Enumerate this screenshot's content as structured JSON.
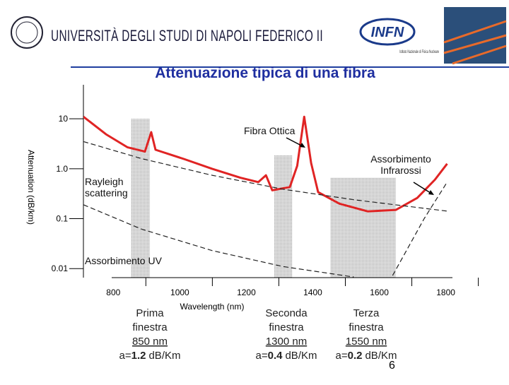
{
  "header": {
    "university": "UNIVERSITÀ DEGLI STUDI DI NAPOLI FEDERICO II",
    "institute": "INFN",
    "institute_full": "Istituto Nazionale di Fisica Nucleare"
  },
  "page_number": "6",
  "chart_data": {
    "type": "line",
    "title": "Attenuazione tipica di una fibra",
    "x_label": "Wavelength (nm)",
    "y_label": "Attenuation (dB/km)",
    "xlim": [
      710,
      1820
    ],
    "xticks": [
      800,
      1000,
      1200,
      1400,
      1600,
      1800
    ],
    "ylim": [
      0.0066,
      48
    ],
    "log_y": true,
    "yticks": [
      10,
      {
        "value": 1,
        "label": "1.0"
      },
      0.1,
      0.01
    ],
    "series": [
      {
        "color": "#e02424",
        "dash": false,
        "x": [
          710,
          778,
          842,
          895,
          914,
          927,
          1012,
          1097,
          1182,
          1236,
          1259,
          1278,
          1331,
          1353,
          1374,
          1395,
          1416,
          1480,
          1565,
          1650,
          1714,
          1767,
          1804
        ],
        "values": [
          11,
          4.9,
          2.7,
          2.2,
          5.4,
          2.4,
          1.57,
          1.0,
          0.66,
          0.54,
          0.74,
          0.37,
          0.43,
          1.14,
          11,
          1.3,
          0.34,
          0.2,
          0.14,
          0.15,
          0.26,
          0.6,
          1.26
        ]
      },
      {
        "color": "#222222",
        "dash": true,
        "x": [
          710,
          884,
          1097,
          1310,
          1523,
          1810
        ],
        "values": [
          3.5,
          1.6,
          0.74,
          0.39,
          0.24,
          0.14
        ]
      },
      {
        "color": "#222222",
        "dash": true,
        "x": [
          710,
          884,
          1097,
          1310,
          1523
        ],
        "values": [
          0.19,
          0.062,
          0.023,
          0.011,
          0.0068
        ]
      },
      {
        "color": "#222222",
        "dash": true,
        "x": [
          1640,
          1735,
          1804
        ],
        "values": [
          0.0073,
          0.1,
          0.54
        ]
      }
    ],
    "shaded_ranges": [
      {
        "x": [
          853,
          910
        ],
        "top": 10
      },
      {
        "x": [
          1284,
          1338
        ],
        "top": 1.85
      },
      {
        "x": [
          1453,
          1650
        ],
        "top": 0.66
      }
    ],
    "annotations": [
      "Fibra Ottica",
      "Assorbimento Infrarossi",
      "Rayleigh scattering",
      "Assorbimento UV"
    ]
  },
  "windows": [
    {
      "label_lines": [
        "Prima",
        "finestra"
      ],
      "wavelength": "850 nm",
      "prefix": "a=",
      "attenuation": 1.2,
      "unit": "dB/Km"
    },
    {
      "label_lines": [
        "Seconda",
        "finestra"
      ],
      "wavelength": "1300 nm",
      "prefix": "a=",
      "attenuation": 0.4,
      "unit": "dB/Km"
    },
    {
      "label_lines": [
        "Terza",
        "finestra"
      ],
      "wavelength": "1550 nm",
      "prefix": "a=",
      "attenuation": 0.2,
      "unit": "dB/Km"
    }
  ]
}
